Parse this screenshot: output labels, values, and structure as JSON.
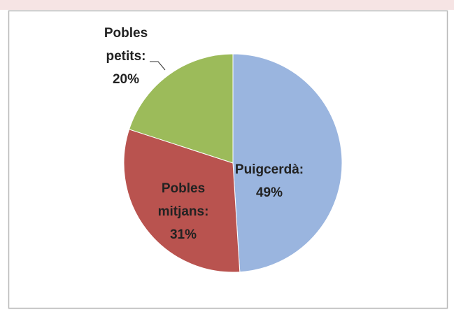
{
  "chart_data": {
    "type": "pie",
    "categories": [
      "Puigcerdà:",
      "Pobles mitjans:",
      "Pobles petits:"
    ],
    "values": [
      49,
      31,
      20
    ],
    "value_labels": [
      "49%",
      "31%",
      "20%"
    ],
    "colors": [
      "#9ab5df",
      "#b9534f",
      "#9cbb5a"
    ]
  }
}
